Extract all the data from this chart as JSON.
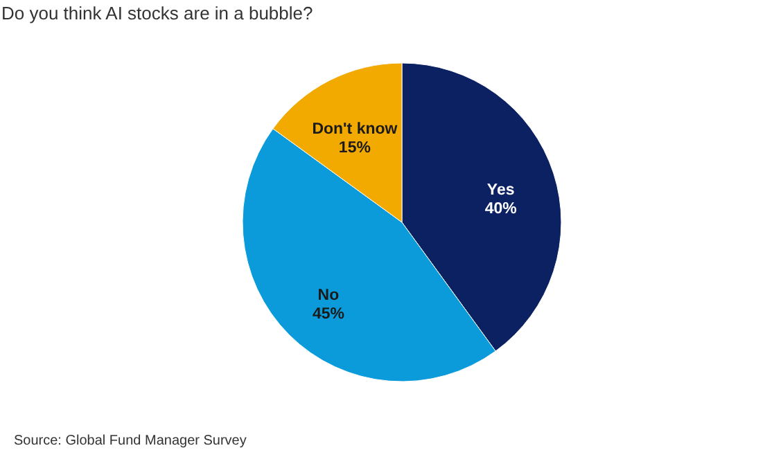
{
  "chart_data": {
    "type": "pie",
    "title": "Do you think AI stocks are in a bubble?",
    "categories": [
      "Yes",
      "No",
      "Don't know"
    ],
    "values": [
      40,
      45,
      15
    ],
    "colors": [
      "#0c2161",
      "#0b9bdb",
      "#f2a900"
    ],
    "value_labels": [
      "40%",
      "45%",
      "15%"
    ],
    "legend": false,
    "annotations": [
      "Source: Global Fund Manager Survey"
    ]
  }
}
